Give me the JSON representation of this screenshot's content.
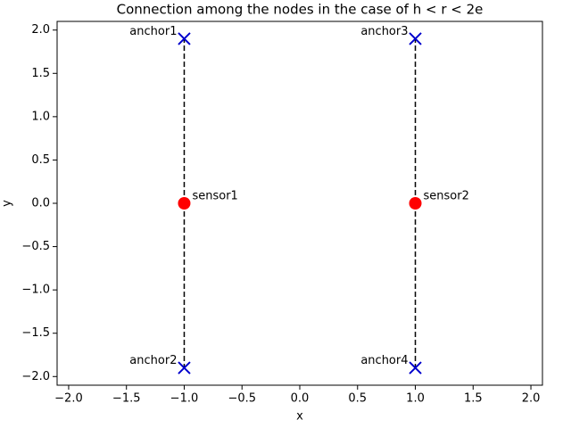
{
  "chart_data": {
    "type": "scatter",
    "title": "Connection among the nodes in the case of h < r < 2e",
    "x_label": "x",
    "y_label": "y",
    "xlim": [
      -2.1,
      2.1
    ],
    "ylim": [
      -2.1,
      2.1
    ],
    "xticks": [
      {
        "value": -2.0,
        "label": "−2.0"
      },
      {
        "value": -1.5,
        "label": "−1.5"
      },
      {
        "value": -1.0,
        "label": "−1.0"
      },
      {
        "value": -0.5,
        "label": "−0.5"
      },
      {
        "value": 0,
        "label": "0.0"
      },
      0.5,
      {
        "value": 1,
        "label": "1.0"
      },
      1.5,
      {
        "value": 2,
        "label": "2.0"
      }
    ],
    "yticks": [
      {
        "value": -2.0,
        "label": "−2.0"
      },
      {
        "value": -1.5,
        "label": "−1.5"
      },
      {
        "value": -1.0,
        "label": "−1.0"
      },
      {
        "value": -0.5,
        "label": "−0.5"
      },
      {
        "value": 0,
        "label": "0.0"
      },
      0.5,
      {
        "value": 1,
        "label": "1.0"
      },
      1.5,
      {
        "value": 2,
        "label": "2.0"
      }
    ],
    "grid": false,
    "series": [
      {
        "marker": "o",
        "color": "#ff0000",
        "label_position": "right",
        "x": [
          -1,
          1
        ],
        "values": [
          0,
          0
        ],
        "labels": [
          "sensor1",
          "sensor2"
        ]
      },
      {
        "marker": "x",
        "color": "#0000cc",
        "label_position": "left",
        "x": [
          -1,
          -1,
          1,
          1
        ],
        "values": [
          1.9,
          -1.9,
          1.9,
          -1.9
        ],
        "labels": [
          "anchor1",
          "anchor2",
          "anchor3",
          "anchor4"
        ]
      }
    ],
    "edges": [
      [
        "sensor1",
        "anchor1"
      ],
      [
        "sensor1",
        "anchor2"
      ],
      [
        "sensor2",
        "anchor3"
      ],
      [
        "sensor2",
        "anchor4"
      ]
    ],
    "edge_style": "dashed"
  }
}
